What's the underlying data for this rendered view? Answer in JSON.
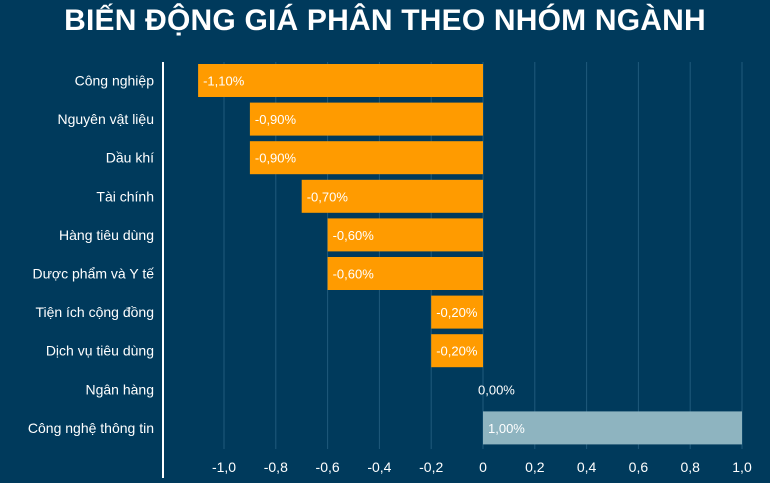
{
  "title": "BIẾN ĐỘNG GIÁ PHÂN THEO NHÓM NGÀNH",
  "colors": {
    "background": "#003a5c",
    "negative": "#ff9b00",
    "positive": "#8eb4c0",
    "grid": "#1f5a7c",
    "axis": "#ffffff",
    "text": "#ffffff"
  },
  "chart_data": {
    "type": "bar",
    "orientation": "horizontal",
    "title": "BIẾN ĐỘNG GIÁ PHÂN THEO NHÓM NGÀNH",
    "categories": [
      "Công nghiệp",
      "Nguyên vật liệu",
      "Dầu khí",
      "Tài chính",
      "Hàng tiêu dùng",
      "Dược phẩm và Y tế",
      "Tiện ích cộng đồng",
      "Dịch vụ tiêu dùng",
      "Ngân hàng",
      "Công nghệ thông tin"
    ],
    "values": [
      -1.1,
      -0.9,
      -0.9,
      -0.7,
      -0.6,
      -0.6,
      -0.2,
      -0.2,
      0.0,
      1.0
    ],
    "data_labels": [
      "-1,10%",
      "-0,90%",
      "-0,90%",
      "-0,70%",
      "-0,60%",
      "-0,60%",
      "-0,20%",
      "-0,20%",
      "0,00%",
      "1,00%"
    ],
    "xlim": [
      -1.2,
      1.0
    ],
    "x_ticks": [
      -1.0,
      -0.8,
      -0.6,
      -0.4,
      -0.2,
      0,
      0.2,
      0.4,
      0.6,
      0.8,
      1.0
    ],
    "x_tick_labels": [
      "-1,0",
      "-0,8",
      "-0,6",
      "-0,4",
      "-0,2",
      "0",
      "0,2",
      "0,4",
      "0,6",
      "0,8",
      "1,0"
    ],
    "grid": true
  }
}
